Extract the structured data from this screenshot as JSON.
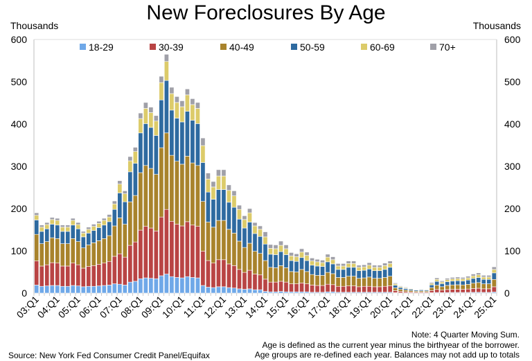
{
  "chart_data": {
    "type": "bar",
    "stacked": true,
    "title": "New Foreclosures By Age",
    "ylabel_left": "Thousands",
    "ylabel_right": "Thousands",
    "ylim": [
      0,
      600
    ],
    "yticks": [
      0,
      100,
      200,
      300,
      400,
      500,
      600
    ],
    "grid": false,
    "legend_position": "top",
    "xtick_labels": [
      "03:Q1",
      "04:Q1",
      "05:Q1",
      "06:Q1",
      "07:Q1",
      "08:Q1",
      "09:Q1",
      "10:Q1",
      "11:Q1",
      "12:Q1",
      "13:Q1",
      "14:Q1",
      "15:Q1",
      "16:Q1",
      "17:Q1",
      "18:Q1",
      "19:Q1",
      "20:Q1",
      "21:Q1",
      "22:Q1",
      "23:Q1",
      "24:Q1",
      "25:Q1"
    ],
    "categories": [
      "03:Q1",
      "03:Q2",
      "03:Q3",
      "03:Q4",
      "04:Q1",
      "04:Q2",
      "04:Q3",
      "04:Q4",
      "05:Q1",
      "05:Q2",
      "05:Q3",
      "05:Q4",
      "06:Q1",
      "06:Q2",
      "06:Q3",
      "06:Q4",
      "07:Q1",
      "07:Q2",
      "07:Q3",
      "07:Q4",
      "08:Q1",
      "08:Q2",
      "08:Q3",
      "08:Q4",
      "09:Q1",
      "09:Q2",
      "09:Q3",
      "09:Q4",
      "10:Q1",
      "10:Q2",
      "10:Q3",
      "10:Q4",
      "11:Q1",
      "11:Q2",
      "11:Q3",
      "11:Q4",
      "12:Q1",
      "12:Q2",
      "12:Q3",
      "12:Q4",
      "13:Q1",
      "13:Q2",
      "13:Q3",
      "13:Q4",
      "14:Q1",
      "14:Q2",
      "14:Q3",
      "14:Q4",
      "15:Q1",
      "15:Q2",
      "15:Q3",
      "15:Q4",
      "16:Q1",
      "16:Q2",
      "16:Q3",
      "16:Q4",
      "17:Q1",
      "17:Q2",
      "17:Q3",
      "17:Q4",
      "18:Q1",
      "18:Q2",
      "18:Q3",
      "18:Q4",
      "19:Q1",
      "19:Q2",
      "19:Q3",
      "19:Q4",
      "20:Q1",
      "20:Q2",
      "20:Q3",
      "20:Q4",
      "21:Q1",
      "21:Q2",
      "21:Q3",
      "21:Q4",
      "22:Q1",
      "22:Q2",
      "22:Q3",
      "22:Q4",
      "23:Q1",
      "23:Q2",
      "23:Q3",
      "23:Q4",
      "24:Q1",
      "24:Q2",
      "24:Q3",
      "24:Q4",
      "25:Q1"
    ],
    "series": [
      {
        "name": "18-29",
        "color": "#6fa8e8",
        "values": [
          19,
          16,
          17,
          18,
          18,
          16,
          16,
          18,
          17,
          15,
          16,
          16,
          17,
          18,
          19,
          22,
          21,
          19,
          26,
          28,
          34,
          36,
          35,
          34,
          41,
          45,
          39,
          37,
          36,
          39,
          37,
          36,
          18,
          14,
          13,
          15,
          15,
          13,
          12,
          10,
          9,
          10,
          8,
          8,
          4,
          3,
          3,
          4,
          3,
          3,
          3,
          3,
          3,
          2,
          2,
          2,
          3,
          3,
          2,
          2,
          2,
          2,
          2,
          2,
          2,
          2,
          2,
          2,
          2,
          1,
          0.7,
          0.6,
          0.5,
          0.4,
          0.4,
          0.4,
          1,
          1.4,
          1.2,
          1.4,
          1.5,
          1.5,
          1.5,
          1.6,
          1.8,
          1.9,
          1.7,
          1.7,
          2.5
        ]
      },
      {
        "name": "30-39",
        "color": "#b94444",
        "values": [
          57,
          48,
          50,
          54,
          53,
          48,
          48,
          53,
          50,
          44,
          47,
          49,
          51,
          53,
          56,
          65,
          72,
          66,
          87,
          93,
          115,
          122,
          119,
          113,
          139,
          153,
          131,
          126,
          123,
          130,
          124,
          122,
          81,
          63,
          58,
          64,
          64,
          56,
          53,
          46,
          40,
          44,
          37,
          35,
          29,
          23,
          23,
          24,
          23,
          19,
          19,
          21,
          19,
          17,
          16,
          16,
          18,
          17,
          14,
          14,
          15,
          15,
          13,
          14,
          14,
          13,
          13,
          14,
          15,
          4.8,
          3.4,
          2.8,
          2.3,
          1.8,
          2,
          1.9,
          5,
          7.2,
          5.8,
          7,
          7.4,
          7.6,
          7.4,
          8,
          9,
          9.6,
          8.4,
          8.4,
          12.4
        ]
      },
      {
        "name": "40-49",
        "color": "#a8832c",
        "values": [
          63,
          53,
          55,
          59,
          58,
          53,
          53,
          58,
          55,
          48,
          51,
          54,
          56,
          58,
          61,
          72,
          85,
          78,
          103,
          110,
          136,
          144,
          141,
          134,
          164,
          181,
          156,
          149,
          146,
          155,
          147,
          144,
          118,
          91,
          85,
          93,
          93,
          82,
          77,
          67,
          59,
          64,
          54,
          51,
          44,
          35,
          34,
          37,
          34,
          29,
          28,
          32,
          29,
          25,
          24,
          24,
          28,
          26,
          21,
          21,
          23,
          23,
          20,
          20,
          22,
          20,
          20,
          21,
          23,
          6.7,
          4.8,
          3.9,
          3.2,
          2.5,
          2.8,
          2.7,
          7,
          10.1,
          8.1,
          9.8,
          10.4,
          10.6,
          10.4,
          11.2,
          12.6,
          13.4,
          11.8,
          11.8,
          17.4
        ]
      },
      {
        "name": "50-59",
        "color": "#2e6aa0",
        "values": [
          34,
          29,
          30,
          32,
          32,
          29,
          29,
          32,
          30,
          26,
          28,
          29,
          31,
          32,
          33,
          39,
          59,
          53,
          71,
          76,
          94,
          99,
          97,
          92,
          113,
          124,
          107,
          102,
          100,
          106,
          101,
          99,
          92,
          71,
          66,
          73,
          73,
          64,
          61,
          52,
          46,
          50,
          42,
          40,
          39,
          31,
          31,
          33,
          31,
          26,
          25,
          28,
          26,
          22,
          22,
          21,
          25,
          23,
          19,
          19,
          21,
          21,
          18,
          18,
          19,
          18,
          18,
          19,
          21,
          6,
          4.3,
          3.5,
          2.9,
          2.3,
          2.5,
          2.4,
          6.3,
          9,
          7.3,
          8.8,
          9.3,
          9.5,
          9.3,
          10,
          11.3,
          12,
          10.5,
          10.5,
          15.5
        ]
      },
      {
        "name": "60-69",
        "color": "#dccb6a",
        "values": [
          11,
          10,
          10,
          11,
          11,
          10,
          10,
          11,
          10,
          9,
          9,
          10,
          10,
          11,
          11,
          13,
          21,
          19,
          26,
          28,
          34,
          36,
          35,
          34,
          41,
          45,
          39,
          37,
          36,
          39,
          37,
          36,
          40,
          31,
          29,
          32,
          32,
          28,
          27,
          23,
          20,
          22,
          18,
          17,
          17,
          14,
          14,
          15,
          14,
          11,
          11,
          13,
          12,
          10,
          10,
          9,
          11,
          10,
          8,
          8,
          9,
          9,
          8,
          8,
          9,
          8,
          8,
          9,
          9,
          3.1,
          2.2,
          1.8,
          1.5,
          1.2,
          1.3,
          1.2,
          3.3,
          4.7,
          3.8,
          4.6,
          4.8,
          4.9,
          4.8,
          5.2,
          5.9,
          6.2,
          5.5,
          5.5,
          8.1
        ]
      },
      {
        "name": "70+",
        "color": "#a0a0a8",
        "values": [
          6,
          5,
          5,
          5,
          5,
          5,
          5,
          5,
          5,
          4,
          5,
          5,
          5,
          5,
          6,
          7,
          8,
          7,
          10,
          10,
          13,
          14,
          13,
          13,
          15,
          17,
          15,
          14,
          14,
          14,
          14,
          14,
          18,
          14,
          13,
          15,
          15,
          13,
          12,
          10,
          9,
          10,
          8,
          8,
          12,
          9,
          9,
          10,
          9,
          8,
          7,
          8,
          8,
          7,
          6,
          6,
          7,
          7,
          6,
          6,
          6,
          6,
          5,
          5,
          6,
          5,
          5,
          6,
          6,
          2.4,
          1.7,
          1.4,
          1.2,
          0.9,
          1,
          1,
          2.5,
          3.6,
          2.9,
          3.5,
          3.7,
          3.8,
          3.7,
          4,
          4.5,
          4.8,
          4.2,
          4.2,
          6.2
        ]
      }
    ],
    "notes": [
      "Note: 4 Quarter Moving Sum.",
      "Age is defined as the current year minus the birthyear of the borrower.",
      "Age groups are re-defined each year. Balances may not add up to totals"
    ],
    "source": "Source: New York Fed Consumer Credit Panel/Equifax"
  }
}
